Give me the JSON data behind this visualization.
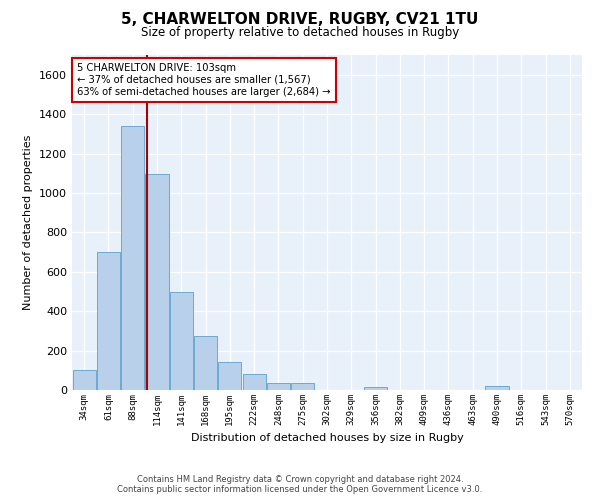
{
  "title": "5, CHARWELTON DRIVE, RUGBY, CV21 1TU",
  "subtitle": "Size of property relative to detached houses in Rugby",
  "xlabel": "Distribution of detached houses by size in Rugby",
  "ylabel": "Number of detached properties",
  "bar_color": "#b8d0ea",
  "bar_edge_color": "#6aaad4",
  "background_color": "#e8f0fa",
  "grid_color": "#ffffff",
  "annotation_box_color": "#cc0000",
  "annotation_line1": "5 CHARWELTON DRIVE: 103sqm",
  "annotation_line2": "← 37% of detached houses are smaller (1,567)",
  "annotation_line3": "63% of semi-detached houses are larger (2,684) →",
  "property_line_color": "#aa0000",
  "categories": [
    "34sqm",
    "61sqm",
    "88sqm",
    "114sqm",
    "141sqm",
    "168sqm",
    "195sqm",
    "222sqm",
    "248sqm",
    "275sqm",
    "302sqm",
    "329sqm",
    "356sqm",
    "382sqm",
    "409sqm",
    "436sqm",
    "463sqm",
    "490sqm",
    "516sqm",
    "543sqm",
    "570sqm"
  ],
  "bin_edges": [
    34,
    61,
    88,
    114,
    141,
    168,
    195,
    222,
    248,
    275,
    302,
    329,
    356,
    382,
    409,
    436,
    463,
    490,
    516,
    543,
    570
  ],
  "bin_width": 27,
  "values": [
    100,
    700,
    1340,
    1095,
    495,
    275,
    140,
    80,
    35,
    35,
    0,
    0,
    15,
    0,
    0,
    0,
    0,
    20,
    0,
    0,
    0
  ],
  "property_sqm": 103,
  "ylim": [
    0,
    1700
  ],
  "yticks": [
    0,
    200,
    400,
    600,
    800,
    1000,
    1200,
    1400,
    1600
  ],
  "footer_text": "Contains HM Land Registry data © Crown copyright and database right 2024.\nContains public sector information licensed under the Open Government Licence v3.0."
}
